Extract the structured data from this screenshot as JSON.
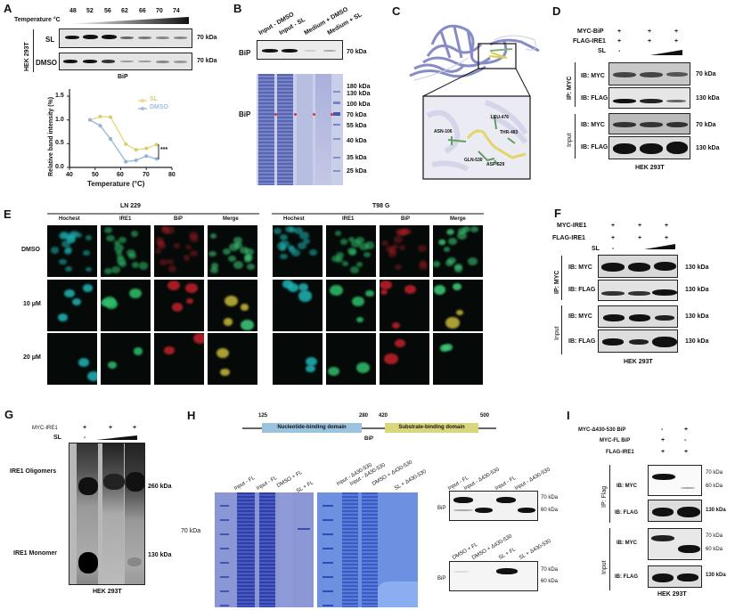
{
  "figure": {
    "panels": [
      "A",
      "B",
      "C",
      "D",
      "E",
      "F",
      "G",
      "H",
      "I"
    ]
  },
  "panelA": {
    "label": "A",
    "temperature_label": "Temperature °C",
    "temperatures": [
      "48",
      "52",
      "56",
      "62",
      "66",
      "70",
      "74"
    ],
    "cell_line": "HEK 293T",
    "rows": [
      {
        "label": "SL",
        "kda": "70 kDa"
      },
      {
        "label": "DMSO",
        "kda": "70 kDa"
      }
    ],
    "protein": "BiP"
  },
  "chart_data": {
    "type": "line",
    "title": "",
    "xlabel": "Temperature (°C)",
    "ylabel": "Relative band intensity (%)",
    "xlim": [
      40,
      80
    ],
    "ylim": [
      0,
      1.5
    ],
    "xticks": [
      "40",
      "50",
      "60",
      "70",
      "80"
    ],
    "yticks": [
      "0.0",
      "0.5",
      "1.0",
      "1.5"
    ],
    "x": [
      48,
      52,
      56,
      62,
      66,
      70,
      74
    ],
    "series": [
      {
        "name": "SL",
        "color": "#e6dc8c",
        "values": [
          1.0,
          1.07,
          1.06,
          0.49,
          0.37,
          0.4,
          0.48
        ]
      },
      {
        "name": "DMSO",
        "color": "#9fbfdc",
        "values": [
          1.0,
          0.88,
          0.6,
          0.12,
          0.15,
          0.24,
          0.18
        ]
      }
    ],
    "annotation": "***",
    "legend_position": "top-right",
    "grid": false
  },
  "panelB": {
    "label": "B",
    "lanes": [
      "Input - DMSO",
      "Input - SL",
      "Medium + DMSO",
      "Medium + SL"
    ],
    "blot_label": "BiP",
    "blot_kda": "70 kDa",
    "gel_label": "BiP",
    "markers": [
      "180 kDa",
      "130 kDa",
      "100 kDa",
      "70 kDa",
      "55 kDa",
      "40 kDa",
      "35 kDa",
      "25 kDa"
    ]
  },
  "panelC": {
    "label": "C",
    "residues": [
      "LEU-476",
      "ASN-106",
      "THR-483",
      "GLN-530",
      "ASP-529"
    ]
  },
  "panelD": {
    "label": "D",
    "conditions": [
      {
        "name": "MYC-BiP",
        "values": [
          "+",
          "+",
          "+"
        ]
      },
      {
        "name": "FLAG-IRE1",
        "values": [
          "+",
          "+",
          "+"
        ]
      },
      {
        "name": "SL",
        "values": [
          "-",
          "",
          ""
        ]
      }
    ],
    "groups": [
      {
        "name": "IP: MYC",
        "rows": [
          {
            "label": "IB: MYC",
            "kda": "70 kDa"
          },
          {
            "label": "IB: FLAG",
            "kda": "130 kDa"
          }
        ]
      },
      {
        "name": "Input",
        "rows": [
          {
            "label": "IB: MYC",
            "kda": "70 kDa"
          },
          {
            "label": "IB: FLAG",
            "kda": "130 kDa"
          }
        ]
      }
    ],
    "cell_line": "HEK 293T"
  },
  "panelE": {
    "label": "E",
    "cell_lines": [
      "LN 229",
      "T98 G"
    ],
    "channels": [
      "Hochest",
      "IRE1",
      "BiP",
      "Merge"
    ],
    "treatments": [
      "DMSO",
      "10 μM",
      "20 μM"
    ]
  },
  "panelF": {
    "label": "F",
    "conditions": [
      {
        "name": "MYC-IRE1",
        "values": [
          "+",
          "+",
          "+"
        ]
      },
      {
        "name": "FLAG-IRE1",
        "values": [
          "+",
          "+",
          "+"
        ]
      },
      {
        "name": "SL",
        "values": [
          "-",
          "",
          ""
        ]
      }
    ],
    "groups": [
      {
        "name": "IP: MYC",
        "rows": [
          {
            "label": "IB: MYC",
            "kda": "130 kDa"
          },
          {
            "label": "IB: FLAG",
            "kda": "130 kDa"
          }
        ]
      },
      {
        "name": "Input",
        "rows": [
          {
            "label": "IB: MYC",
            "kda": "130 kDa"
          },
          {
            "label": "IB: FLAG",
            "kda": "130 kDa"
          }
        ]
      }
    ],
    "cell_line": "HEK 293T"
  },
  "panelG": {
    "label": "G",
    "conditions": [
      {
        "name": "MYC-IRE1",
        "values": [
          "+",
          "+",
          "+"
        ]
      },
      {
        "name": "SL",
        "values": [
          "-",
          "",
          ""
        ]
      }
    ],
    "bands": [
      {
        "label": "IRE1 Oligomers",
        "kda": "260 kDa"
      },
      {
        "label": "IRE1 Monomer",
        "kda": "130 kDa"
      }
    ],
    "cell_line": "HEK 293T"
  },
  "panelH": {
    "label": "H",
    "domain_positions": [
      "125",
      "280",
      "420",
      "500"
    ],
    "domains": [
      "Nucleotide-binding domain",
      "Substrate-binding domain"
    ],
    "protein": "BiP",
    "gel_marker": "70 kDa",
    "gel1_lanes": [
      "Input - FL",
      "Input - FL",
      "DMSO + FL",
      "SL + FL"
    ],
    "gel2_lanes": [
      "Input - Δ430-530",
      "Input - Δ430-530",
      "DMSO + Δ430-530",
      "SL + Δ430-530"
    ],
    "blot1_lanes": [
      "Input - FL",
      "Input - Δ430-530",
      "Input - FL",
      "Input - Δ430-530"
    ],
    "blot2_lanes": [
      "DMSO + FL",
      "DMSO + Δ430-530",
      "SL + FL",
      "SL + Δ430-530"
    ],
    "blot_label": "BiP",
    "kda": [
      "70 kDa",
      "60 kDa"
    ]
  },
  "panelI": {
    "label": "I",
    "conditions": [
      {
        "name": "MYC-Δ430-530 BiP",
        "values": [
          "-",
          "+"
        ]
      },
      {
        "name": "MYC-FL BiP",
        "values": [
          "+",
          "-"
        ]
      },
      {
        "name": "FLAG-IRE1",
        "values": [
          "+",
          "+"
        ]
      }
    ],
    "groups": [
      {
        "name": "IP: Flag",
        "rows": [
          {
            "label": "IB: MYC",
            "kda": [
              "70 kDa",
              "60 kDa"
            ]
          },
          {
            "label": "IB: FLAG",
            "kda": [
              "130 kDa"
            ]
          }
        ]
      },
      {
        "name": "Input",
        "rows": [
          {
            "label": "IB: MYC",
            "kda": [
              "70 kDa",
              "60 kDa"
            ]
          },
          {
            "label": "IB: FLAG",
            "kda": [
              "130 kDa"
            ]
          }
        ]
      }
    ],
    "cell_line": "HEK 293T"
  }
}
